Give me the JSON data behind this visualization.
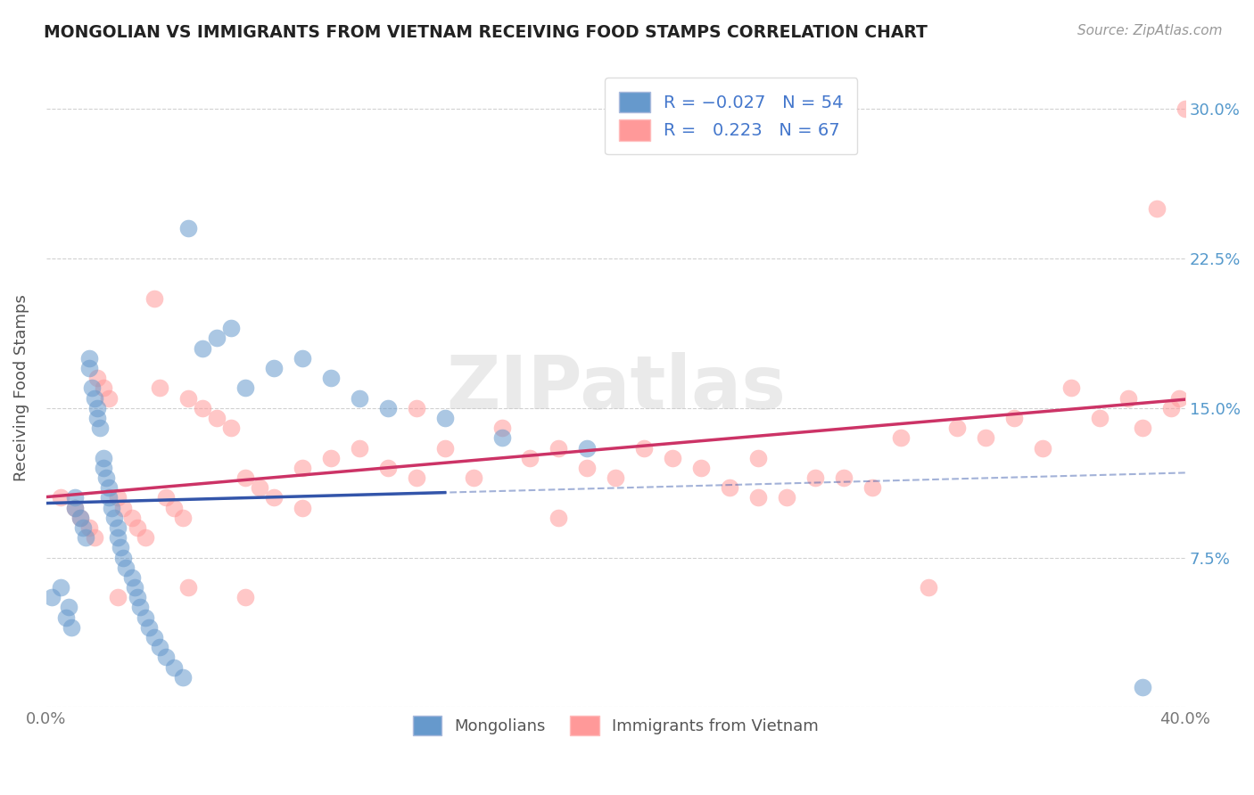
{
  "title": "MONGOLIAN VS IMMIGRANTS FROM VIETNAM RECEIVING FOOD STAMPS CORRELATION CHART",
  "source": "Source: ZipAtlas.com",
  "ylabel": "Receiving Food Stamps",
  "xlim": [
    0.0,
    0.4
  ],
  "ylim": [
    0.0,
    0.32
  ],
  "xtick_positions": [
    0.0,
    0.1,
    0.2,
    0.3,
    0.4
  ],
  "xticklabels": [
    "0.0%",
    "",
    "",
    "",
    "40.0%"
  ],
  "ytick_positions": [
    0.0,
    0.075,
    0.15,
    0.225,
    0.3
  ],
  "ytick_right_positions": [
    0.075,
    0.15,
    0.225,
    0.3
  ],
  "yticklabels_right": [
    "7.5%",
    "15.0%",
    "22.5%",
    "30.0%"
  ],
  "grid_color": "#cccccc",
  "background_color": "#ffffff",
  "watermark": "ZIPatlas",
  "color_mongolian": "#6699cc",
  "color_vietnam": "#ff9999",
  "color_line_mongolian": "#3355aa",
  "color_line_vietnam": "#cc3366",
  "R_mongolian": -0.027,
  "N_mongolian": 54,
  "R_vietnam": 0.223,
  "N_vietnam": 67,
  "mongolian_x": [
    0.002,
    0.005,
    0.007,
    0.008,
    0.009,
    0.01,
    0.01,
    0.012,
    0.013,
    0.014,
    0.015,
    0.015,
    0.016,
    0.017,
    0.018,
    0.018,
    0.019,
    0.02,
    0.02,
    0.021,
    0.022,
    0.022,
    0.023,
    0.024,
    0.025,
    0.025,
    0.026,
    0.027,
    0.028,
    0.03,
    0.031,
    0.032,
    0.033,
    0.035,
    0.036,
    0.038,
    0.04,
    0.042,
    0.045,
    0.048,
    0.05,
    0.055,
    0.06,
    0.065,
    0.07,
    0.08,
    0.09,
    0.1,
    0.11,
    0.12,
    0.14,
    0.16,
    0.19,
    0.385
  ],
  "mongolian_y": [
    0.055,
    0.06,
    0.045,
    0.05,
    0.04,
    0.1,
    0.105,
    0.095,
    0.09,
    0.085,
    0.17,
    0.175,
    0.16,
    0.155,
    0.15,
    0.145,
    0.14,
    0.12,
    0.125,
    0.115,
    0.11,
    0.105,
    0.1,
    0.095,
    0.085,
    0.09,
    0.08,
    0.075,
    0.07,
    0.065,
    0.06,
    0.055,
    0.05,
    0.045,
    0.04,
    0.035,
    0.03,
    0.025,
    0.02,
    0.015,
    0.24,
    0.18,
    0.185,
    0.19,
    0.16,
    0.17,
    0.175,
    0.165,
    0.155,
    0.15,
    0.145,
    0.135,
    0.13,
    0.01
  ],
  "vietnam_x": [
    0.005,
    0.01,
    0.012,
    0.015,
    0.017,
    0.018,
    0.02,
    0.022,
    0.025,
    0.027,
    0.03,
    0.032,
    0.035,
    0.038,
    0.04,
    0.042,
    0.045,
    0.048,
    0.05,
    0.055,
    0.06,
    0.065,
    0.07,
    0.075,
    0.08,
    0.09,
    0.1,
    0.11,
    0.12,
    0.13,
    0.14,
    0.15,
    0.16,
    0.17,
    0.18,
    0.19,
    0.2,
    0.21,
    0.22,
    0.23,
    0.24,
    0.25,
    0.26,
    0.27,
    0.28,
    0.29,
    0.3,
    0.31,
    0.32,
    0.33,
    0.34,
    0.35,
    0.36,
    0.37,
    0.38,
    0.385,
    0.39,
    0.395,
    0.398,
    0.4,
    0.25,
    0.18,
    0.13,
    0.09,
    0.05,
    0.07,
    0.025
  ],
  "vietnam_y": [
    0.105,
    0.1,
    0.095,
    0.09,
    0.085,
    0.165,
    0.16,
    0.155,
    0.105,
    0.1,
    0.095,
    0.09,
    0.085,
    0.205,
    0.16,
    0.105,
    0.1,
    0.095,
    0.155,
    0.15,
    0.145,
    0.14,
    0.115,
    0.11,
    0.105,
    0.12,
    0.125,
    0.13,
    0.12,
    0.115,
    0.13,
    0.115,
    0.14,
    0.125,
    0.13,
    0.12,
    0.115,
    0.13,
    0.125,
    0.12,
    0.11,
    0.125,
    0.105,
    0.115,
    0.115,
    0.11,
    0.135,
    0.06,
    0.14,
    0.135,
    0.145,
    0.13,
    0.16,
    0.145,
    0.155,
    0.14,
    0.25,
    0.15,
    0.155,
    0.3,
    0.105,
    0.095,
    0.15,
    0.1,
    0.06,
    0.055,
    0.055
  ]
}
